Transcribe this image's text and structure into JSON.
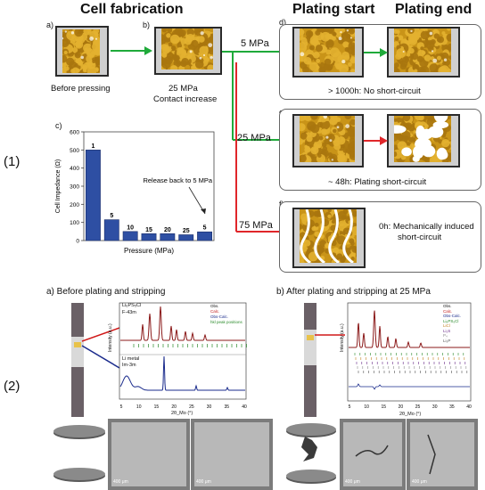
{
  "header": {
    "cell_fabrication": "Cell fabrication",
    "plating_start": "Plating start",
    "plating_end": "Plating end"
  },
  "row_labels": [
    "(1)",
    "(2)"
  ],
  "part1": {
    "a_letter": "a)",
    "a_caption": "Before pressing",
    "b_letter": "b)",
    "b_caption_line1": "25 MPa",
    "b_caption_line2": "Contact increase",
    "c_letter": "c)",
    "d_letter": "d)",
    "d_caption": "> 1000h: No short-circuit",
    "e_letter": "e)",
    "e_caption": "~ 48h: Plating short-circuit",
    "f_letter": "f)",
    "f_caption_line1": "0h: Mechanically induced",
    "f_caption_line2": "short-circuit",
    "pressure_5": "5 MPa",
    "pressure_25": "25 MPa",
    "pressure_75": "75 MPa",
    "colors": {
      "green_arrow": "#1faa3a",
      "red_arrow": "#e0262a",
      "particle": "#d8a21e",
      "bar": "#2e4fa3"
    }
  },
  "chart_data": {
    "type": "bar",
    "categories": [
      "1",
      "5",
      "10",
      "15",
      "20",
      "25",
      "5"
    ],
    "values": [
      500,
      115,
      50,
      38,
      38,
      32,
      48
    ],
    "bar_labels": [
      "1",
      "5",
      "10",
      "15",
      "20",
      "25",
      "5"
    ],
    "ylabel": "Cell Impedance (Ω)",
    "xlabel": "Pressure (MPa)",
    "ylim": [
      0,
      600
    ],
    "yticks": [
      0,
      100,
      200,
      300,
      400,
      500,
      600
    ],
    "annotation": "Release back to 5 MPa"
  },
  "part2": {
    "a_title": "a)  Before plating and stripping",
    "b_title": "b)  After plating and stripping at 25 MPa",
    "a_plot": {
      "formula": "Li₆PS₅Cl",
      "space_group": "F-43m",
      "li_metal": "Li metal",
      "li_group": "Im-3m",
      "legend": [
        "Obs.",
        "Calc.",
        "Obs-Calc.",
        "hkl peak positions"
      ],
      "ylabel": "Intensity (a.u.)",
      "xlabel": "2θ_Mo (°)",
      "xticks": [
        "5",
        "10",
        "15",
        "20",
        "25",
        "30",
        "35",
        "40"
      ]
    },
    "b_plot": {
      "legend": [
        "Obs.",
        "Calc.",
        "Obs-Calc.",
        "Li₆PS₅Cl",
        "LiCl",
        "Li₂S",
        "P₄",
        "Li₃P"
      ],
      "ylabel": "Intensity (a.u.)",
      "xlabel": "2θ_Mo (°)",
      "xticks": [
        "5",
        "10",
        "15",
        "20",
        "25",
        "30",
        "35",
        "40"
      ]
    },
    "scale_bars": [
      "400 μm",
      "400 μm",
      "400 μm",
      "400 μm"
    ]
  }
}
